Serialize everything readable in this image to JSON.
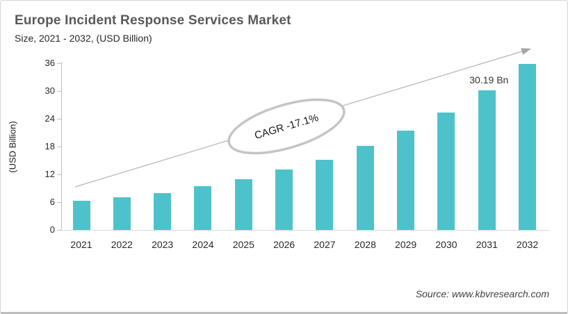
{
  "header": {
    "title": "Europe Incident Response Services Market",
    "subtitle": "Size, 2021 - 2032, (USD Billion)"
  },
  "chart_data": {
    "type": "bar",
    "title": "Europe Incident Response Services Market",
    "subtitle": "Size, 2021 - 2032, (USD Billion)",
    "categories": [
      "2021",
      "2022",
      "2023",
      "2024",
      "2025",
      "2026",
      "2027",
      "2028",
      "2029",
      "2030",
      "2031",
      "2032"
    ],
    "values": [
      6.3,
      7.1,
      8.0,
      9.4,
      11.0,
      13.0,
      15.2,
      18.1,
      21.4,
      25.4,
      30.19,
      35.9
    ],
    "xlabel": "",
    "ylabel": "(USD Billion)",
    "ylim": [
      0,
      36
    ],
    "yticks": [
      0,
      6,
      12,
      18,
      24,
      30,
      36
    ],
    "grid": false,
    "legend": false,
    "bar_color": "#4ec2cb",
    "annotations": {
      "cagr_label": "CAGR -17.1%",
      "value_label": {
        "text": "30.19 Bn",
        "category": "2031"
      }
    },
    "trend_arrow": true
  },
  "footer": {
    "source": "Source: www.kbvresearch.com"
  }
}
